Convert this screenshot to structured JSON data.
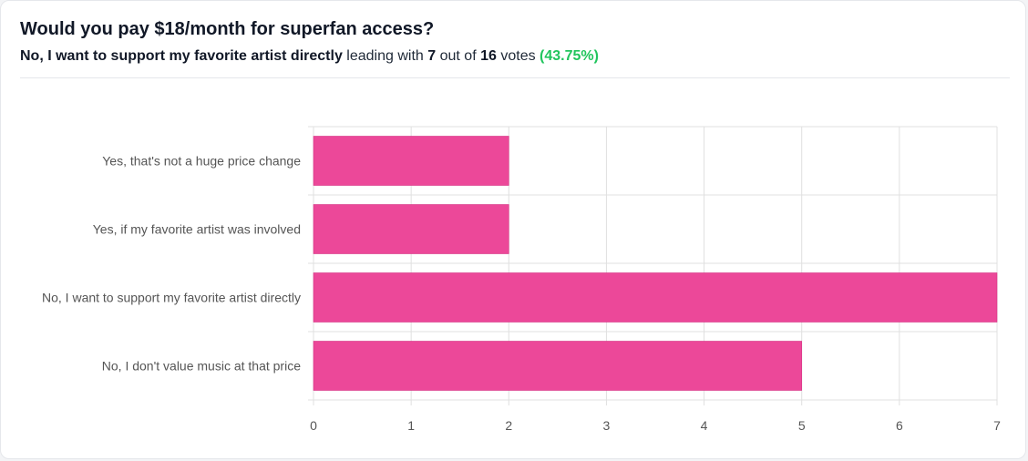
{
  "poll": {
    "question": "Would you pay $18/month for superfan access?",
    "leader_label": "No, I want to support my favorite artist directly",
    "leading_with_text": "leading with",
    "leader_votes": "7",
    "out_of_text": "out of",
    "total_votes": "16",
    "votes_text": "votes",
    "leader_percent": "(43.75%)"
  },
  "colors": {
    "bar": "#ec4899",
    "percent": "#22c55e",
    "grid": "#e0e0e0"
  },
  "chart_data": {
    "type": "bar",
    "orientation": "horizontal",
    "categories": [
      "Yes, that's not a huge price change",
      "Yes, if my favorite artist was involved",
      "No, I want to support my favorite artist directly",
      "No, I don't value music at that price"
    ],
    "values": [
      2,
      2,
      7,
      5
    ],
    "xlim": [
      0,
      7
    ],
    "xticks": [
      0,
      1,
      2,
      3,
      4,
      5,
      6,
      7
    ],
    "grid": true,
    "legend": "none",
    "title": "",
    "xlabel": "",
    "ylabel": ""
  }
}
